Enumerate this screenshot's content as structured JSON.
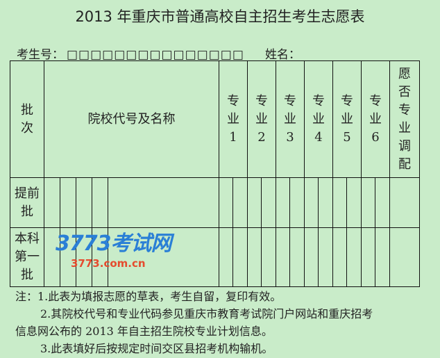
{
  "title": "2013 年重庆市普通高校自主招生考生志愿表",
  "id_label": "考生号：",
  "id_boxes": "□□□□□□□□□□□□□□□",
  "name_label": "姓名：",
  "table": {
    "col_batch": "批次",
    "col_school": "院校代号及名称",
    "majors": [
      "专业1",
      "专业2",
      "专业3",
      "专业4",
      "专业5",
      "专业6"
    ],
    "col_adjust": "愿否专业调配",
    "rows": [
      "提前批",
      "本科第一批"
    ]
  },
  "notes": [
    "注：1.此表为填报志愿的草表，考生自留，复印有效。",
    "2.其院校代号和专业代码参见重庆市教育考试院门户网站和重庆招考",
    "信息网公布的 2013 年自主招生院校专业计划信息。",
    "3.此表填好后按规定时间交区县招考机构输机。"
  ],
  "watermark": {
    "logo": "3773考试网",
    "url": "3773.com.cn"
  },
  "colors": {
    "background": "#c9ecc9",
    "watermark_blue": "#2a7fd6",
    "watermark_red": "#e54b2e"
  }
}
